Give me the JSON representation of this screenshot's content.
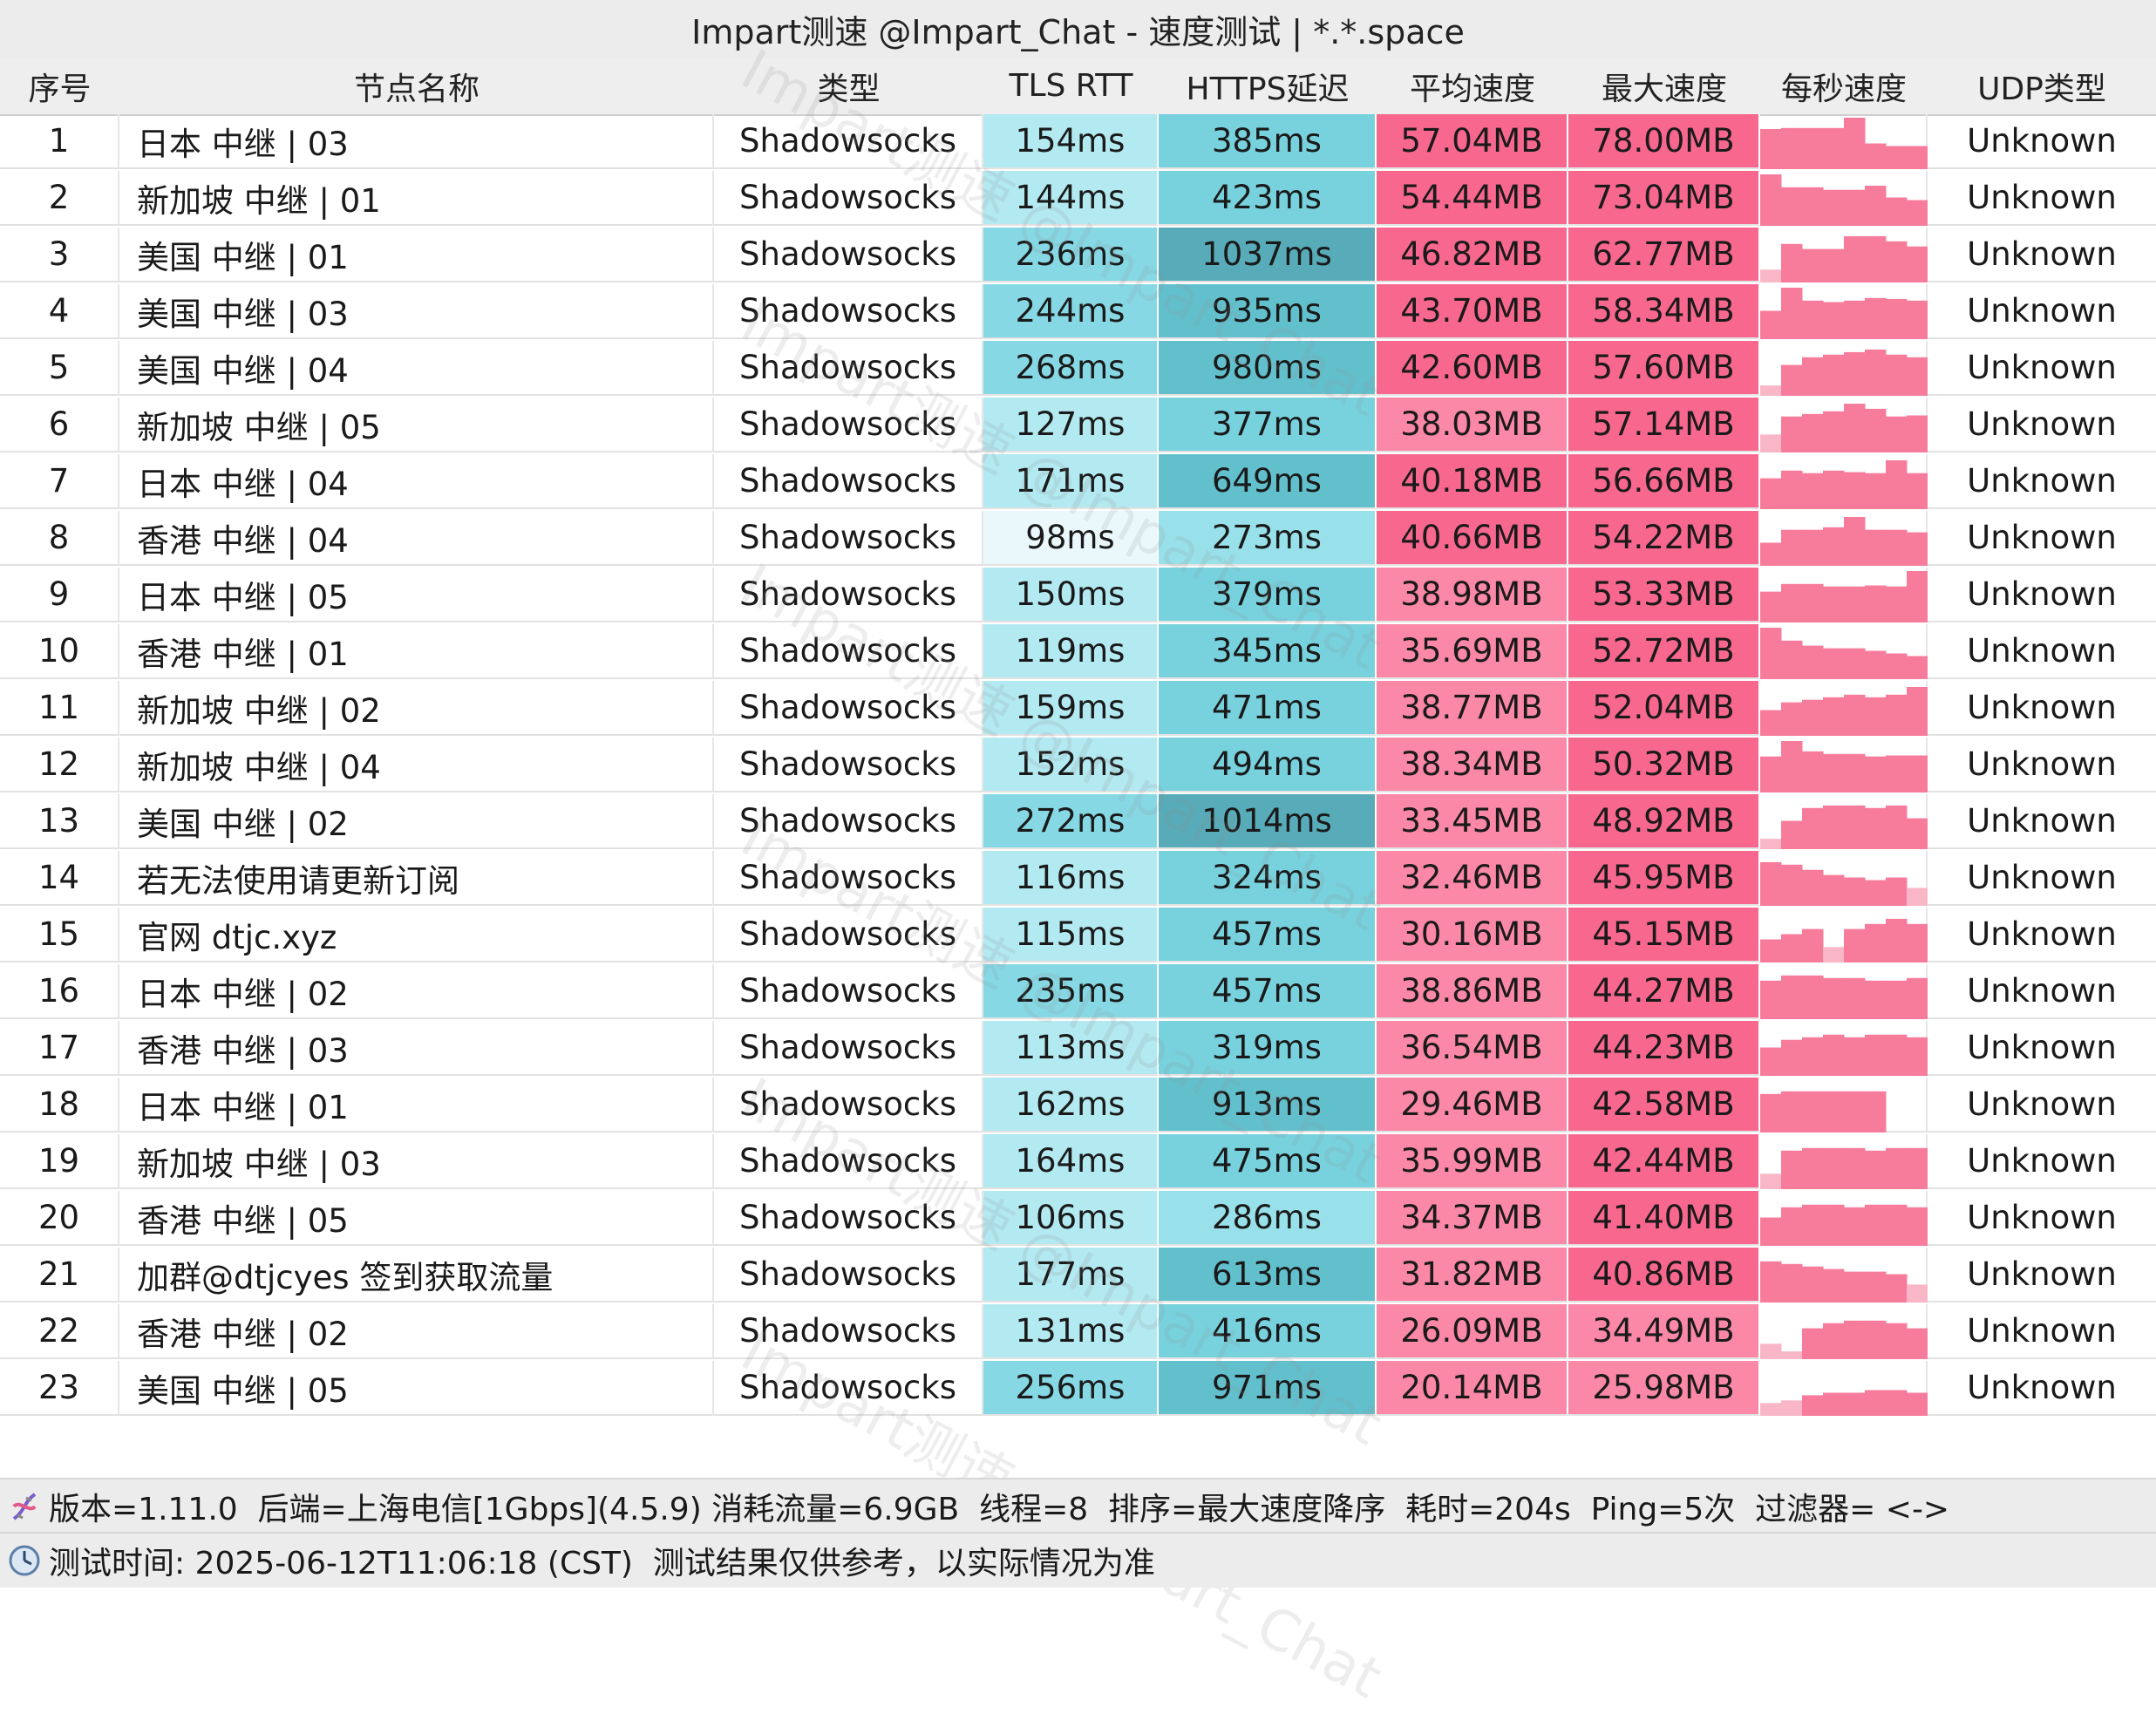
{
  "window": {
    "title": "Impart测速 @Impart_Chat - 速度测试 | *.*.space"
  },
  "watermark": "Impart测速 @Impart_Chat",
  "columns": [
    "序号",
    "节点名称",
    "类型",
    "TLS RTT",
    "HTTPS延迟",
    "平均速度",
    "最大速度",
    "每秒速度",
    "UDP类型"
  ],
  "colors": {
    "tls_light": "#eaf8fb",
    "tls_mid": "#b3e9f1",
    "tls_dark": "#86d8e4",
    "https_light": "#99e1ea",
    "https_mid": "#78d2de",
    "https_dark": "#62c0cd",
    "https_darkest": "#58abb8",
    "speed_red": "#f7678e",
    "speed_pink": "#fa88a6",
    "spark_fill": "#f77c9c",
    "spark_faint": "#f9b6c7"
  },
  "rows": [
    {
      "index": "1",
      "name": "日本 中继 | 03",
      "type": "Shadowsocks",
      "tls": "154ms",
      "https": "385ms",
      "avg": "57.04MB",
      "max": "78.00MB",
      "udp": "Unknown",
      "spark": [
        0.78,
        0.8,
        0.8,
        0.8,
        1.0,
        0.5,
        0.45,
        0.45
      ]
    },
    {
      "index": "2",
      "name": "新加坡 中继 | 01",
      "type": "Shadowsocks",
      "tls": "144ms",
      "https": "423ms",
      "avg": "54.44MB",
      "max": "73.04MB",
      "udp": "Unknown",
      "spark": [
        1.0,
        0.75,
        0.75,
        0.7,
        0.7,
        0.78,
        0.55,
        0.5
      ]
    },
    {
      "index": "3",
      "name": "美国 中继 | 01",
      "type": "Shadowsocks",
      "tls": "236ms",
      "https": "1037ms",
      "avg": "46.82MB",
      "max": "62.77MB",
      "udp": "Unknown",
      "spark": [
        0.25,
        0.75,
        0.65,
        0.65,
        0.9,
        0.9,
        0.8,
        0.7
      ]
    },
    {
      "index": "4",
      "name": "美国 中继 | 03",
      "type": "Shadowsocks",
      "tls": "244ms",
      "https": "935ms",
      "avg": "43.70MB",
      "max": "58.34MB",
      "udp": "Unknown",
      "spark": [
        0.55,
        1.0,
        0.75,
        0.72,
        0.75,
        0.8,
        0.78,
        0.75
      ]
    },
    {
      "index": "5",
      "name": "美国 中继 | 04",
      "type": "Shadowsocks",
      "tls": "268ms",
      "https": "980ms",
      "avg": "42.60MB",
      "max": "57.60MB",
      "udp": "Unknown",
      "spark": [
        0.2,
        0.6,
        0.75,
        0.8,
        0.85,
        0.9,
        0.8,
        0.75
      ]
    },
    {
      "index": "6",
      "name": "新加坡 中继 | 05",
      "type": "Shadowsocks",
      "tls": "127ms",
      "https": "377ms",
      "avg": "38.03MB",
      "max": "57.14MB",
      "udp": "Unknown",
      "spark": [
        0.35,
        0.7,
        0.75,
        0.8,
        0.95,
        0.85,
        0.7,
        0.72
      ]
    },
    {
      "index": "7",
      "name": "日本 中继 | 04",
      "type": "Shadowsocks",
      "tls": "171ms",
      "https": "649ms",
      "avg": "40.18MB",
      "max": "56.66MB",
      "udp": "Unknown",
      "spark": [
        0.6,
        0.75,
        0.7,
        0.75,
        0.72,
        0.7,
        0.95,
        0.7
      ]
    },
    {
      "index": "8",
      "name": "香港 中继 | 04",
      "type": "Shadowsocks",
      "tls": "98ms",
      "https": "273ms",
      "avg": "40.66MB",
      "max": "54.22MB",
      "udp": "Unknown",
      "spark": [
        0.45,
        0.7,
        0.7,
        0.75,
        0.95,
        0.7,
        0.7,
        0.65
      ]
    },
    {
      "index": "9",
      "name": "日本 中继 | 05",
      "type": "Shadowsocks",
      "tls": "150ms",
      "https": "379ms",
      "avg": "38.98MB",
      "max": "53.33MB",
      "udp": "Unknown",
      "spark": [
        0.6,
        0.75,
        0.75,
        0.7,
        0.7,
        0.72,
        0.7,
        1.0
      ]
    },
    {
      "index": "10",
      "name": "香港 中继 | 01",
      "type": "Shadowsocks",
      "tls": "119ms",
      "https": "345ms",
      "avg": "35.69MB",
      "max": "52.72MB",
      "udp": "Unknown",
      "spark": [
        1.0,
        0.75,
        0.65,
        0.6,
        0.6,
        0.55,
        0.5,
        0.45
      ]
    },
    {
      "index": "11",
      "name": "新加坡 中继 | 02",
      "type": "Shadowsocks",
      "tls": "159ms",
      "https": "471ms",
      "avg": "38.77MB",
      "max": "52.04MB",
      "udp": "Unknown",
      "spark": [
        0.5,
        0.65,
        0.7,
        0.75,
        0.8,
        0.75,
        0.8,
        0.95
      ]
    },
    {
      "index": "12",
      "name": "新加坡 中继 | 04",
      "type": "Shadowsocks",
      "tls": "152ms",
      "https": "494ms",
      "avg": "38.34MB",
      "max": "50.32MB",
      "udp": "Unknown",
      "spark": [
        0.7,
        1.0,
        0.8,
        0.75,
        0.75,
        0.7,
        0.72,
        0.72
      ]
    },
    {
      "index": "13",
      "name": "美国 中继 | 02",
      "type": "Shadowsocks",
      "tls": "272ms",
      "https": "1014ms",
      "avg": "33.45MB",
      "max": "48.92MB",
      "udp": "Unknown",
      "spark": [
        0.2,
        0.55,
        0.8,
        0.85,
        0.85,
        0.8,
        0.85,
        0.6
      ]
    },
    {
      "index": "14",
      "name": "若无法使用请更新订阅",
      "type": "Shadowsocks",
      "tls": "116ms",
      "https": "324ms",
      "avg": "32.46MB",
      "max": "45.95MB",
      "udp": "Unknown",
      "spark": [
        0.85,
        0.8,
        0.7,
        0.6,
        0.55,
        0.5,
        0.55,
        0.35
      ]
    },
    {
      "index": "15",
      "name": "官网 dtjc.xyz",
      "type": "Shadowsocks",
      "tls": "115ms",
      "https": "457ms",
      "avg": "30.16MB",
      "max": "45.15MB",
      "udp": "Unknown",
      "spark": [
        0.45,
        0.55,
        0.65,
        0.3,
        0.65,
        0.75,
        0.85,
        0.75
      ]
    },
    {
      "index": "16",
      "name": "日本 中继 | 02",
      "type": "Shadowsocks",
      "tls": "235ms",
      "https": "457ms",
      "avg": "38.86MB",
      "max": "44.27MB",
      "udp": "Unknown",
      "spark": [
        0.75,
        0.85,
        0.85,
        0.8,
        0.8,
        0.75,
        0.75,
        0.8
      ]
    },
    {
      "index": "17",
      "name": "香港 中继 | 03",
      "type": "Shadowsocks",
      "tls": "113ms",
      "https": "319ms",
      "avg": "36.54MB",
      "max": "44.23MB",
      "udp": "Unknown",
      "spark": [
        0.55,
        0.7,
        0.75,
        0.8,
        0.75,
        0.8,
        0.8,
        0.75
      ]
    },
    {
      "index": "18",
      "name": "日本 中继 | 01",
      "type": "Shadowsocks",
      "tls": "162ms",
      "https": "913ms",
      "avg": "29.46MB",
      "max": "42.58MB",
      "udp": "Unknown",
      "spark": [
        0.75,
        0.8,
        0.8,
        0.8,
        0.8,
        0.8,
        0.0,
        0.0
      ]
    },
    {
      "index": "19",
      "name": "新加坡 中继 | 03",
      "type": "Shadowsocks",
      "tls": "164ms",
      "https": "475ms",
      "avg": "35.99MB",
      "max": "42.44MB",
      "udp": "Unknown",
      "spark": [
        0.3,
        0.75,
        0.8,
        0.8,
        0.8,
        0.75,
        0.8,
        0.8
      ]
    },
    {
      "index": "20",
      "name": "香港 中继 | 05",
      "type": "Shadowsocks",
      "tls": "106ms",
      "https": "286ms",
      "avg": "34.37MB",
      "max": "41.40MB",
      "udp": "Unknown",
      "spark": [
        0.55,
        0.75,
        0.8,
        0.8,
        0.75,
        0.8,
        0.8,
        0.75
      ]
    },
    {
      "index": "21",
      "name": "加群@dtjcyes 签到获取流量",
      "type": "Shadowsocks",
      "tls": "177ms",
      "https": "613ms",
      "avg": "31.82MB",
      "max": "40.86MB",
      "udp": "Unknown",
      "spark": [
        0.8,
        0.75,
        0.7,
        0.65,
        0.6,
        0.6,
        0.55,
        0.35
      ]
    },
    {
      "index": "22",
      "name": "香港 中继 | 02",
      "type": "Shadowsocks",
      "tls": "131ms",
      "https": "416ms",
      "avg": "26.09MB",
      "max": "34.49MB",
      "udp": "Unknown",
      "spark": [
        0.3,
        0.15,
        0.6,
        0.7,
        0.75,
        0.75,
        0.7,
        0.6
      ]
    },
    {
      "index": "23",
      "name": "美国 中继 | 05",
      "type": "Shadowsocks",
      "tls": "256ms",
      "https": "971ms",
      "avg": "20.14MB",
      "max": "25.98MB",
      "udp": "Unknown",
      "spark": [
        0.25,
        0.3,
        0.4,
        0.45,
        0.45,
        0.5,
        0.5,
        0.45
      ]
    }
  ],
  "footer": {
    "line1": "版本=1.11.0  后端=上海电信[1Gbps](4.5.9) 消耗流量=6.9GB  线程=8  排序=最大速度降序  耗时=204s  Ping=5次  过滤器= <->",
    "line2": "测试时间: 2025-06-12T11:06:18 (CST)  测试结果仅供参考，以实际情况为准"
  }
}
